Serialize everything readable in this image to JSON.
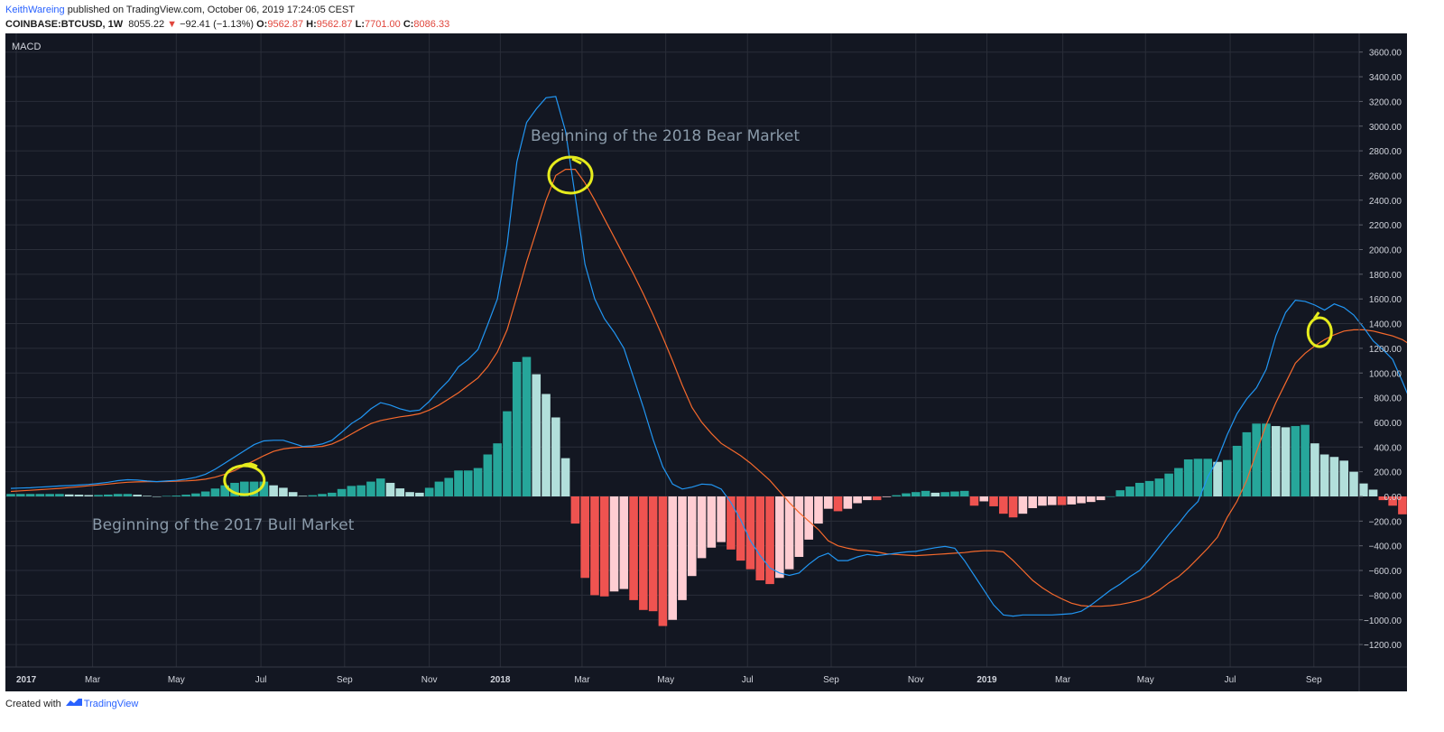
{
  "header": {
    "author": "KeithWareing",
    "published_text": "published on TradingView.com, October 06, 2019 17:24:05 CEST",
    "symbol": "COINBASE:BTCUSD, 1W",
    "last": "8055.22",
    "change": "−92.41 (−1.13%)",
    "o_label": "O:",
    "o_value": "9562.87",
    "h_label": "H:",
    "h_value": "9562.87",
    "l_label": "L:",
    "l_value": "7701.00",
    "c_label": "C:",
    "c_value": "8086.33"
  },
  "footer": {
    "created_with": "Created with",
    "brand": "TradingView"
  },
  "colors": {
    "background": "#131722",
    "grid": "#2a2e39",
    "macd_line": "#2196f3",
    "signal_line": "#f6692c",
    "hist_pos_strong": "#26a69a",
    "hist_pos_weak": "#b2dfdb",
    "hist_neg_strong": "#ef5350",
    "hist_neg_weak": "#ffcdd2",
    "annotation": "#e6ec1d"
  },
  "chart_data": {
    "type": "line",
    "indicator_label": "MACD",
    "ylim": [
      -1400,
      3750
    ],
    "y_ticks": [
      "3600.00",
      "3400.00",
      "3200.00",
      "3000.00",
      "2800.00",
      "2600.00",
      "2400.00",
      "2200.00",
      "2000.00",
      "1800.00",
      "1600.00",
      "1400.00",
      "1200.00",
      "1000.00",
      "800.00",
      "600.00",
      "400.00",
      "200.00",
      "0.00",
      "−200.00",
      "−400.00",
      "−600.00",
      "−800.00",
      "−1000.00",
      "−1200.00"
    ],
    "x_tick_labels": [
      "2017",
      "Mar",
      "May",
      "Jul",
      "Sep",
      "Nov",
      "2018",
      "Mar",
      "May",
      "Jul",
      "Sep",
      "Nov",
      "2019",
      "Mar",
      "May",
      "Jul",
      "Sep"
    ],
    "x_tick_weeks": [
      0,
      8.4,
      17,
      25.7,
      34.3,
      43,
      50.3,
      58.7,
      67.3,
      75.7,
      84.3,
      93,
      100.3,
      108.1,
      116.6,
      125.3,
      133.9
    ],
    "bold_ticks": [
      "2017",
      "2018",
      "2019"
    ],
    "weeks": 139,
    "series": [
      {
        "name": "MACD",
        "values": [
          65,
          68,
          70,
          75,
          80,
          85,
          88,
          92,
          97,
          105,
          115,
          128,
          135,
          132,
          125,
          120,
          125,
          130,
          140,
          155,
          180,
          220,
          270,
          320,
          370,
          420,
          450,
          455,
          455,
          430,
          405,
          410,
          425,
          455,
          520,
          590,
          640,
          710,
          760,
          740,
          710,
          690,
          700,
          770,
          860,
          940,
          1050,
          1110,
          1190,
          1390,
          1600,
          2040,
          2710,
          3030,
          3140,
          3230,
          3240,
          2960,
          2430,
          1880,
          1600,
          1440,
          1330,
          1200,
          960,
          720,
          460,
          240,
          100,
          60,
          75,
          100,
          95,
          60,
          -50,
          -190,
          -360,
          -480,
          -580,
          -620,
          -640,
          -620,
          -550,
          -490,
          -460,
          -520,
          -520,
          -490,
          -470,
          -480,
          -470,
          -460,
          -450,
          -445,
          -430,
          -415,
          -405,
          -420,
          -520,
          -640,
          -760,
          -880,
          -960,
          -970,
          -960,
          -960,
          -960,
          -960,
          -955,
          -950,
          -930,
          -880,
          -820,
          -760,
          -710,
          -650,
          -600,
          -510,
          -410,
          -310,
          -220,
          -120,
          -40,
          160,
          300,
          500,
          670,
          790,
          880,
          1030,
          1300,
          1490,
          1590,
          1580,
          1550,
          1510,
          1560,
          1530,
          1470,
          1370,
          1260,
          1190,
          1110,
          930,
          740
        ],
        "color": "#2196f3"
      },
      {
        "name": "Signal",
        "values": [
          40,
          45,
          50,
          55,
          60,
          65,
          72,
          78,
          86,
          93,
          100,
          108,
          115,
          118,
          120,
          120,
          121,
          123,
          126,
          131,
          140,
          156,
          180,
          210,
          250,
          290,
          330,
          365,
          385,
          395,
          400,
          400,
          405,
          425,
          460,
          505,
          550,
          590,
          615,
          630,
          645,
          655,
          670,
          700,
          740,
          790,
          840,
          900,
          960,
          1050,
          1170,
          1350,
          1620,
          1900,
          2150,
          2400,
          2600,
          2650,
          2650,
          2540,
          2400,
          2250,
          2100,
          1950,
          1800,
          1640,
          1470,
          1290,
          1100,
          900,
          720,
          600,
          510,
          430,
          380,
          330,
          270,
          200,
          130,
          40,
          -50,
          -130,
          -200,
          -270,
          -360,
          -400,
          -420,
          -435,
          -440,
          -450,
          -465,
          -470,
          -475,
          -480,
          -475,
          -470,
          -465,
          -460,
          -455,
          -445,
          -440,
          -440,
          -450,
          -520,
          -600,
          -680,
          -740,
          -790,
          -830,
          -865,
          -885,
          -890,
          -890,
          -885,
          -875,
          -860,
          -840,
          -810,
          -760,
          -700,
          -650,
          -580,
          -500,
          -420,
          -330,
          -170,
          -40,
          130,
          360,
          580,
          760,
          920,
          1080,
          1160,
          1220,
          1270,
          1310,
          1340,
          1350,
          1350,
          1340,
          1320,
          1300,
          1270,
          1220,
          1120
        ],
        "color": "#f6692c"
      },
      {
        "name": "Histogram",
        "type": "bar",
        "values": [
          20,
          20,
          20,
          20,
          20,
          20,
          16,
          14,
          11,
          12,
          15,
          20,
          20,
          14,
          5,
          0,
          4,
          7,
          14,
          24,
          40,
          64,
          90,
          110,
          120,
          120,
          120,
          90,
          70,
          35,
          5,
          10,
          20,
          30,
          60,
          85,
          90,
          120,
          145,
          110,
          65,
          35,
          30,
          70,
          120,
          150,
          210,
          210,
          230,
          340,
          430,
          690,
          1090,
          1130,
          990,
          830,
          640,
          310,
          -220,
          -660,
          -800,
          -810,
          -770,
          -750,
          -840,
          -920,
          -930,
          -1050,
          -1000,
          -840,
          -645,
          -500,
          -415,
          -370,
          -430,
          -520,
          -590,
          -680,
          -710,
          -660,
          -590,
          -490,
          -350,
          -220,
          -100,
          -120,
          -100,
          -55,
          -30,
          -30,
          -5,
          10,
          25,
          35,
          45,
          30,
          35,
          40,
          45,
          -75,
          -40,
          -80,
          -140,
          -170,
          -140,
          -95,
          -75,
          -70,
          -70,
          -65,
          -55,
          -45,
          -30,
          0,
          50,
          80,
          110,
          125,
          145,
          185,
          230,
          300,
          305,
          305,
          280,
          295,
          410,
          520,
          590,
          590,
          570,
          560,
          570,
          580,
          430,
          340,
          320,
          290,
          200,
          105,
          55,
          -30,
          -75,
          -145,
          -260,
          -385
        ],
        "color": "#26a69a"
      }
    ],
    "annotations": [
      "Beginning of the 2018 Bear Market",
      "Beginning of the 2017 Bull Market"
    ]
  }
}
